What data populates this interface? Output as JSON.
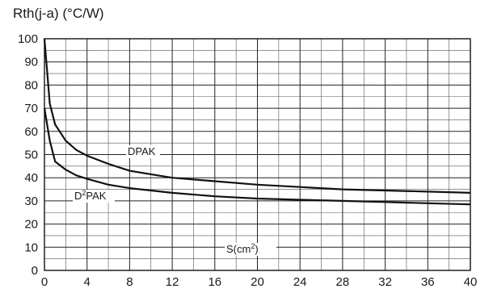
{
  "chart_data": {
    "type": "line",
    "ylabel": "Rth(j-a) (°C/W)",
    "xlabel": {
      "base": "S(cm",
      "sup": "2",
      "tail": ")"
    },
    "xlim": [
      0,
      40
    ],
    "ylim": [
      0,
      100
    ],
    "x_ticks": [
      0,
      4,
      8,
      12,
      16,
      20,
      24,
      28,
      32,
      36,
      40
    ],
    "y_ticks": [
      0,
      10,
      20,
      30,
      40,
      50,
      60,
      70,
      80,
      90,
      100
    ],
    "grid": true,
    "series": [
      {
        "name": "DPAK",
        "label": {
          "base": "DPAK"
        },
        "x": [
          0,
          0.5,
          1,
          2,
          3,
          4,
          6,
          8,
          10,
          12,
          16,
          20,
          24,
          28,
          32,
          36,
          40
        ],
        "y": [
          100,
          72,
          63,
          56,
          52,
          49.5,
          46,
          43,
          41.5,
          40,
          38.5,
          37,
          36,
          35,
          34.5,
          34,
          33.5
        ]
      },
      {
        "name": "D2PAK",
        "label": {
          "pre": "D",
          "sup": "2",
          "base": "PAK"
        },
        "x": [
          0,
          0.5,
          1,
          2,
          3,
          4,
          6,
          8,
          10,
          12,
          16,
          20,
          24,
          28,
          32,
          36,
          40
        ],
        "y": [
          70,
          56,
          47,
          43.5,
          41,
          39.5,
          37,
          35.5,
          34.5,
          33.5,
          32,
          31,
          30.5,
          30,
          29.5,
          29,
          28.5
        ]
      }
    ]
  }
}
